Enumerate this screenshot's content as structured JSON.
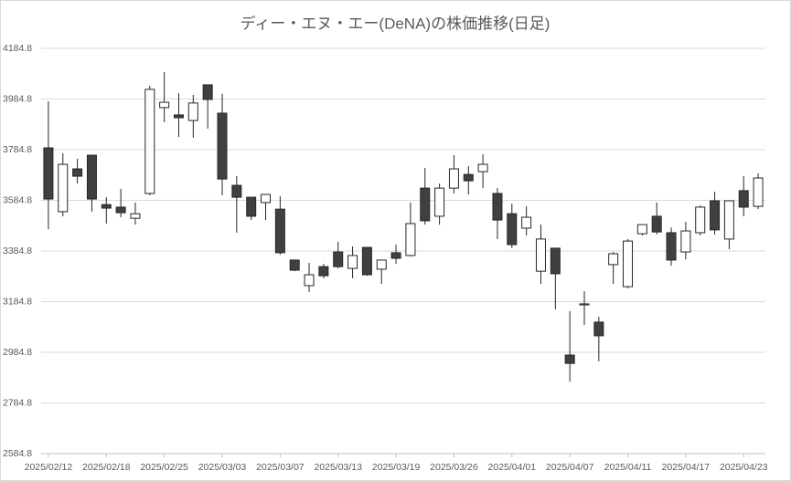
{
  "chart_data": {
    "type": "candlestick",
    "title": "ディー・エヌ・エー(DeNA)の株価推移(日足)",
    "categories": [
      "2025/02/12",
      null,
      null,
      null,
      "2025/02/18",
      null,
      null,
      null,
      "2025/02/25",
      null,
      null,
      null,
      "2025/03/03",
      null,
      null,
      null,
      "2025/03/07",
      null,
      null,
      null,
      "2025/03/13",
      null,
      null,
      null,
      "2025/03/19",
      null,
      null,
      null,
      "2025/03/26",
      null,
      null,
      null,
      "2025/04/01",
      null,
      null,
      null,
      "2025/04/07",
      null,
      null,
      null,
      "2025/04/11",
      null,
      null,
      null,
      "2025/04/17",
      null,
      null,
      null,
      "2025/04/23",
      null
    ],
    "open": [
      3792,
      3540,
      3709,
      3763,
      3568,
      3558,
      3514,
      3612,
      3951,
      3922,
      3900,
      4041,
      3929,
      3644,
      3597,
      3576,
      3550,
      3349,
      3248,
      3323,
      3381,
      3316,
      3399,
      3313,
      3378,
      3367,
      3633,
      3522,
      3633,
      3687,
      3698,
      3612,
      3532,
      3475,
      3305,
      3396,
      2974,
      3172,
      3104,
      3331,
      3244,
      3453,
      3522,
      3457,
      3381,
      3457,
      3583,
      3432,
      3623,
      3561
    ],
    "high": [
      3976,
      3770,
      3749,
      3763,
      3597,
      3630,
      3576,
      4037,
      4091,
      4008,
      4001,
      4041,
      4005,
      3680,
      3597,
      3608,
      3601,
      3349,
      3338,
      3334,
      3421,
      3403,
      3399,
      3349,
      3410,
      3576,
      3713,
      3651,
      3763,
      3720,
      3767,
      3633,
      3572,
      3561,
      3489,
      3396,
      3147,
      3226,
      3125,
      3381,
      3432,
      3489,
      3576,
      3478,
      3500,
      3565,
      3619,
      3583,
      3680,
      3691
    ],
    "low": [
      3471,
      3522,
      3651,
      3540,
      3493,
      3518,
      3489,
      3605,
      3893,
      3835,
      3832,
      3868,
      3605,
      3457,
      3507,
      3507,
      3370,
      3305,
      3223,
      3277,
      3316,
      3277,
      3287,
      3255,
      3334,
      3363,
      3489,
      3489,
      3612,
      3608,
      3633,
      3432,
      3396,
      3446,
      3255,
      3154,
      2869,
      3093,
      2949,
      3255,
      3237,
      3446,
      3450,
      3327,
      3352,
      3446,
      3450,
      3392,
      3522,
      3550
    ],
    "close": [
      3590,
      3727,
      3680,
      3590,
      3554,
      3536,
      3532,
      4023,
      3972,
      3911,
      3969,
      3983,
      3669,
      3597,
      3522,
      3608,
      3378,
      3309,
      3291,
      3287,
      3323,
      3367,
      3291,
      3349,
      3356,
      3493,
      3504,
      3633,
      3709,
      3662,
      3727,
      3507,
      3410,
      3518,
      3432,
      3295,
      2941,
      3176,
      3050,
      3374,
      3424,
      3489,
      3460,
      3349,
      3464,
      3558,
      3468,
      3583,
      3558,
      3673
    ],
    "up_color": "#ffffff",
    "down_color": "#404040",
    "edge_color": "#262626",
    "ylim": [
      2584.8,
      4184.8
    ],
    "yticks": [
      2584.8,
      2784.8,
      2984.8,
      3184.8,
      3384.8,
      3584.8,
      3784.8,
      3984.8,
      4184.8
    ],
    "grid": true
  }
}
